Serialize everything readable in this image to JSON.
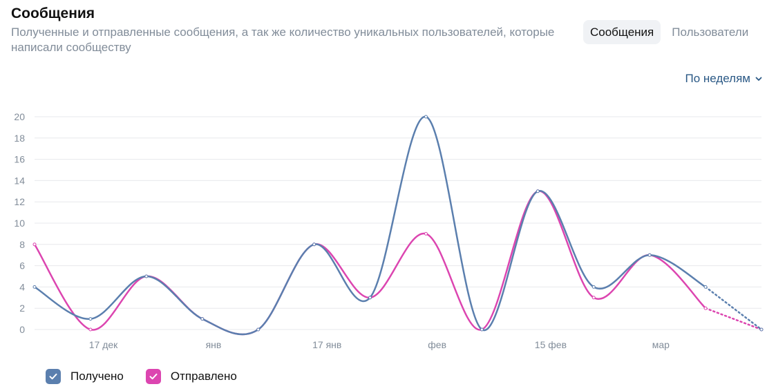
{
  "header": {
    "title": "Сообщения",
    "subtitle": "Полученные и отправленные сообщения, а так же количество уникальных пользователей, которые написали сообществу"
  },
  "tabs": [
    {
      "label": "Сообщения",
      "active": true
    },
    {
      "label": "Пользователи",
      "active": false
    }
  ],
  "period": {
    "label": "По неделям",
    "icon": "chevron-down-icon"
  },
  "colors": {
    "received": "#5b7fae",
    "sent": "#dc45b0",
    "grid": "#e7e8ec",
    "axis": "#818c99"
  },
  "chart_data": {
    "type": "line",
    "x": [
      0,
      1,
      2,
      3,
      4,
      5,
      6,
      7,
      8,
      9,
      10,
      11,
      12,
      13
    ],
    "xticks": [
      {
        "x": 1.23,
        "label": "17 дек"
      },
      {
        "x": 3.2,
        "label": "янв"
      },
      {
        "x": 5.23,
        "label": "17 янв"
      },
      {
        "x": 7.2,
        "label": "фев"
      },
      {
        "x": 9.23,
        "label": "15 фев"
      },
      {
        "x": 11.2,
        "label": "мар"
      }
    ],
    "ylim": [
      0,
      20
    ],
    "yticks": [
      0,
      2,
      4,
      6,
      8,
      10,
      12,
      14,
      16,
      18,
      20
    ],
    "grid": true,
    "series": [
      {
        "name": "Получено",
        "key": "received",
        "values": [
          4,
          1,
          5,
          1,
          0,
          8,
          3,
          20,
          0,
          13,
          4,
          7,
          4,
          0
        ],
        "projected_from": 12
      },
      {
        "name": "Отправлено",
        "key": "sent",
        "values": [
          8,
          0,
          5,
          1,
          0,
          8,
          3,
          9,
          0,
          13,
          3,
          7,
          2,
          0
        ],
        "projected_from": 12
      }
    ]
  }
}
